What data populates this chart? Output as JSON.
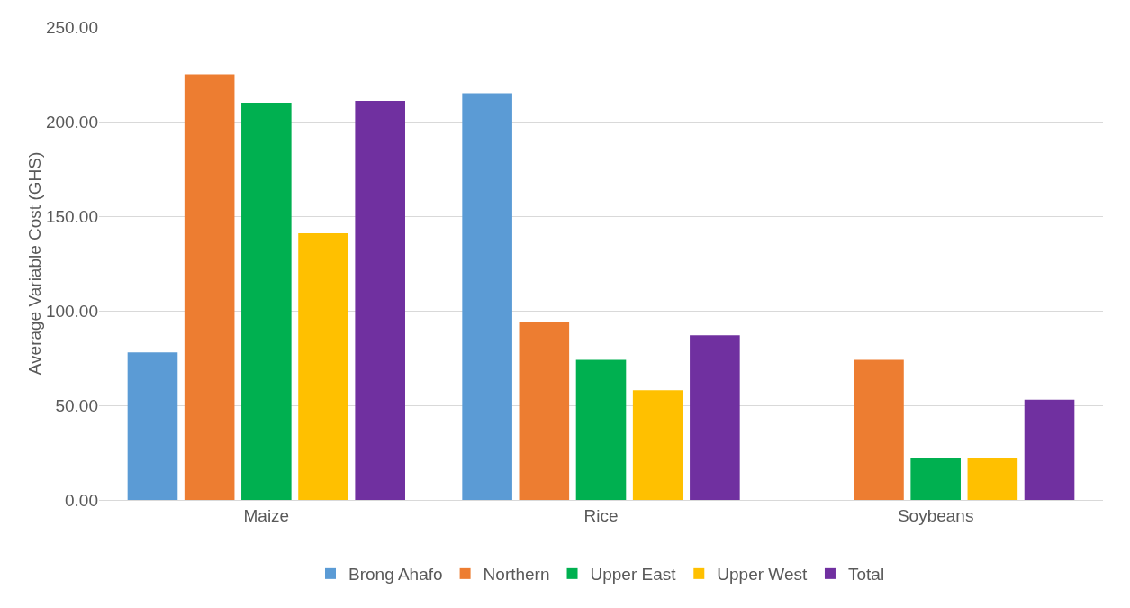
{
  "chart_data": {
    "type": "bar",
    "ylabel": "Average Variable Cost (GHS)",
    "categories": [
      "Maize",
      "Rice",
      "Soybeans"
    ],
    "series": [
      {
        "name": "Brong Ahafo",
        "color": "#5b9bd5",
        "values": [
          78,
          215,
          null
        ]
      },
      {
        "name": "Northern",
        "color": "#ed7d31",
        "values": [
          225,
          94,
          74
        ]
      },
      {
        "name": "Upper East",
        "color": "#00b050",
        "values": [
          210,
          74,
          22
        ]
      },
      {
        "name": "Upper West",
        "color": "#ffc000",
        "values": [
          141,
          58,
          22
        ]
      },
      {
        "name": "Total",
        "color": "#7030a0",
        "values": [
          211,
          87,
          53
        ]
      }
    ],
    "ylim": [
      0,
      250
    ],
    "yticks": [
      {
        "value": 0,
        "label": "0.00"
      },
      {
        "value": 50,
        "label": "50.00"
      },
      {
        "value": 100,
        "label": "100.00"
      },
      {
        "value": 150,
        "label": "150.00"
      },
      {
        "value": 200,
        "label": "200.00"
      },
      {
        "value": 250,
        "label": "250.00"
      }
    ],
    "grid": "y",
    "legend": "bottom"
  }
}
